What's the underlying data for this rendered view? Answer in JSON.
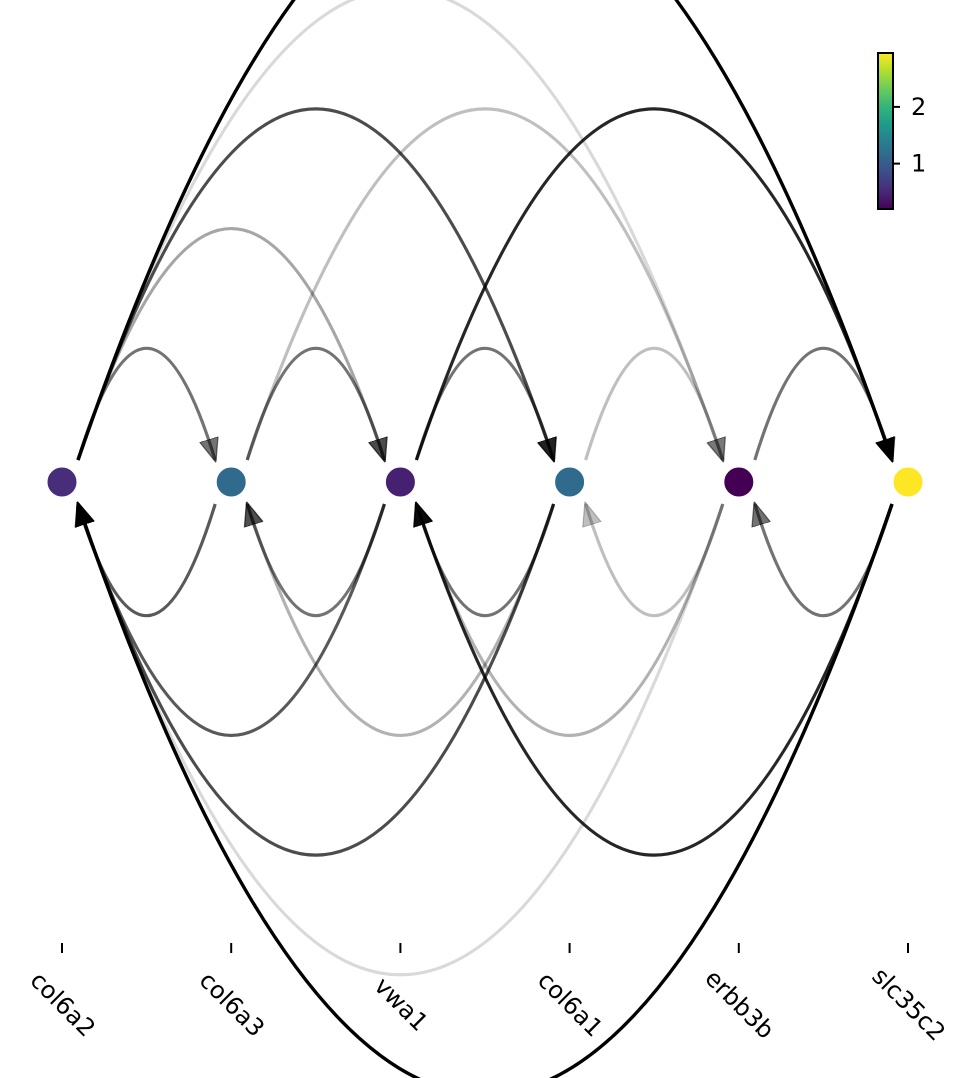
{
  "chart_data": {
    "type": "arc-network",
    "nodes": [
      {
        "name": "col6a2",
        "value": 0.55
      },
      {
        "name": "col6a3",
        "value": 1.15
      },
      {
        "name": "vwa1",
        "value": 0.45
      },
      {
        "name": "col6a1",
        "value": 1.15
      },
      {
        "name": "erbb3b",
        "value": 0.2
      },
      {
        "name": "slc35c2",
        "value": 2.95
      }
    ],
    "edges": [
      {
        "source": "col6a2",
        "target": "col6a3",
        "opacity": 0.55
      },
      {
        "source": "col6a2",
        "target": "vwa1",
        "opacity": 0.35
      },
      {
        "source": "col6a2",
        "target": "col6a1",
        "opacity": 0.7
      },
      {
        "source": "col6a2",
        "target": "erbb3b",
        "opacity": 0.15
      },
      {
        "source": "col6a2",
        "target": "slc35c2",
        "opacity": 1.0
      },
      {
        "source": "col6a3",
        "target": "vwa1",
        "opacity": 0.55
      },
      {
        "source": "col6a3",
        "target": "erbb3b",
        "opacity": 0.25
      },
      {
        "source": "vwa1",
        "target": "col6a1",
        "opacity": 0.55
      },
      {
        "source": "vwa1",
        "target": "slc35c2",
        "opacity": 0.85
      },
      {
        "source": "col6a1",
        "target": "erbb3b",
        "opacity": 0.25
      },
      {
        "source": "erbb3b",
        "target": "slc35c2",
        "opacity": 0.55
      },
      {
        "source": "col6a3",
        "target": "col6a2",
        "opacity": 0.65
      },
      {
        "source": "vwa1",
        "target": "col6a2",
        "opacity": 0.65
      },
      {
        "source": "vwa1",
        "target": "col6a3",
        "opacity": 0.55
      },
      {
        "source": "col6a1",
        "target": "col6a2",
        "opacity": 0.7
      },
      {
        "source": "col6a1",
        "target": "col6a3",
        "opacity": 0.3
      },
      {
        "source": "col6a1",
        "target": "vwa1",
        "opacity": 0.55
      },
      {
        "source": "erbb3b",
        "target": "col6a2",
        "opacity": 0.15
      },
      {
        "source": "erbb3b",
        "target": "vwa1",
        "opacity": 0.3
      },
      {
        "source": "erbb3b",
        "target": "col6a1",
        "opacity": 0.25
      },
      {
        "source": "slc35c2",
        "target": "col6a2",
        "opacity": 1.0
      },
      {
        "source": "slc35c2",
        "target": "vwa1",
        "opacity": 0.85
      },
      {
        "source": "slc35c2",
        "target": "erbb3b",
        "opacity": 0.55
      }
    ],
    "colorbar": {
      "colormap": "viridis",
      "range": [
        0.2,
        2.95
      ],
      "ticks": [
        1,
        2
      ]
    },
    "title": "",
    "xlabel": "",
    "ylabel": ""
  }
}
